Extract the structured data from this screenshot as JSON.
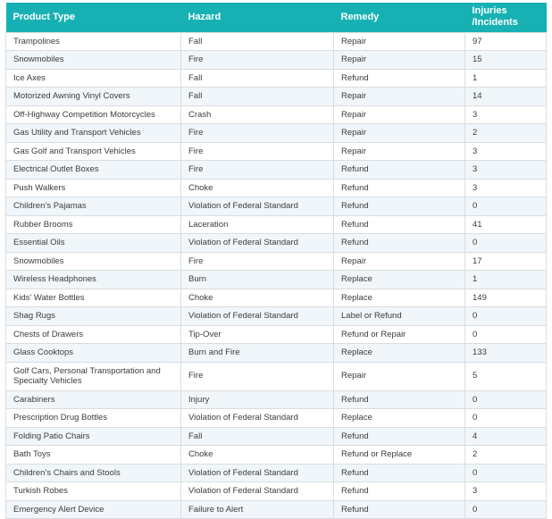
{
  "colors": {
    "header_bg": "#17b1b3",
    "header_text": "#ffffff",
    "alt_row": "#f0f6fa",
    "border": "#d9dde1",
    "text": "#3c3c3c",
    "page_bg": "#ffffff"
  },
  "chart_data": {
    "type": "table",
    "columns": [
      "Product Type",
      "Hazard",
      "Remedy",
      "Injuries\n/Incidents"
    ],
    "rows": [
      [
        "Trampolines",
        "Fall",
        "Repair",
        97
      ],
      [
        "Snowmobiles",
        "Fire",
        "Repair",
        15
      ],
      [
        "Ice Axes",
        "Fall",
        "Refund",
        1
      ],
      [
        "Motorized Awning Vinyl Covers",
        "Fall",
        "Repair",
        14
      ],
      [
        "Off-Highway Competition Motorcycles",
        "Crash",
        "Repair",
        3
      ],
      [
        "Gas Utility and Transport Vehicles",
        "Fire",
        "Repair",
        2
      ],
      [
        "Gas Golf and Transport Vehicles",
        "Fire",
        "Repair",
        3
      ],
      [
        "Electrical Outlet Boxes",
        "Fire",
        "Refund",
        3
      ],
      [
        "Push Walkers",
        "Choke",
        "Refund",
        3
      ],
      [
        "Children’s Pajamas",
        "Violation of Federal Standard",
        "Refund",
        0
      ],
      [
        "Rubber Brooms",
        "Laceration",
        "Refund",
        41
      ],
      [
        "Essential Oils",
        "Violation of Federal Standard",
        "Refund",
        0
      ],
      [
        "Snowmobiles",
        "Fire",
        "Repair",
        17
      ],
      [
        "Wireless Headphones",
        "Burn",
        "Replace",
        1
      ],
      [
        "Kids’ Water Bottles",
        "Choke",
        "Replace",
        149
      ],
      [
        "Shag Rugs",
        "Violation of Federal Standard",
        "Label or Refund",
        0
      ],
      [
        "Chests of Drawers",
        "Tip-Over",
        "Refund or Repair",
        0
      ],
      [
        "Glass Cooktops",
        "Burn and Fire",
        "Replace",
        133
      ],
      [
        "Golf Cars, Personal Transportation and Specialty Vehicles",
        "Fire",
        "Repair",
        5
      ],
      [
        "Carabiners",
        "Injury",
        "Refund",
        0
      ],
      [
        "Prescription Drug Bottles",
        "Violation of Federal Standard",
        "Replace",
        0
      ],
      [
        "Folding Patio Chairs",
        "Fall",
        "Refund",
        4
      ],
      [
        "Bath Toys",
        "Choke",
        "Refund or Replace",
        2
      ],
      [
        "Children’s Chairs and Stools",
        "Violation of Federal Standard",
        "Refund",
        0
      ],
      [
        "Turkish Robes",
        "Violation of Federal Standard",
        "Refund",
        3
      ],
      [
        "Emergency Alert Device",
        "Failure to Alert",
        "Refund",
        0
      ]
    ]
  }
}
